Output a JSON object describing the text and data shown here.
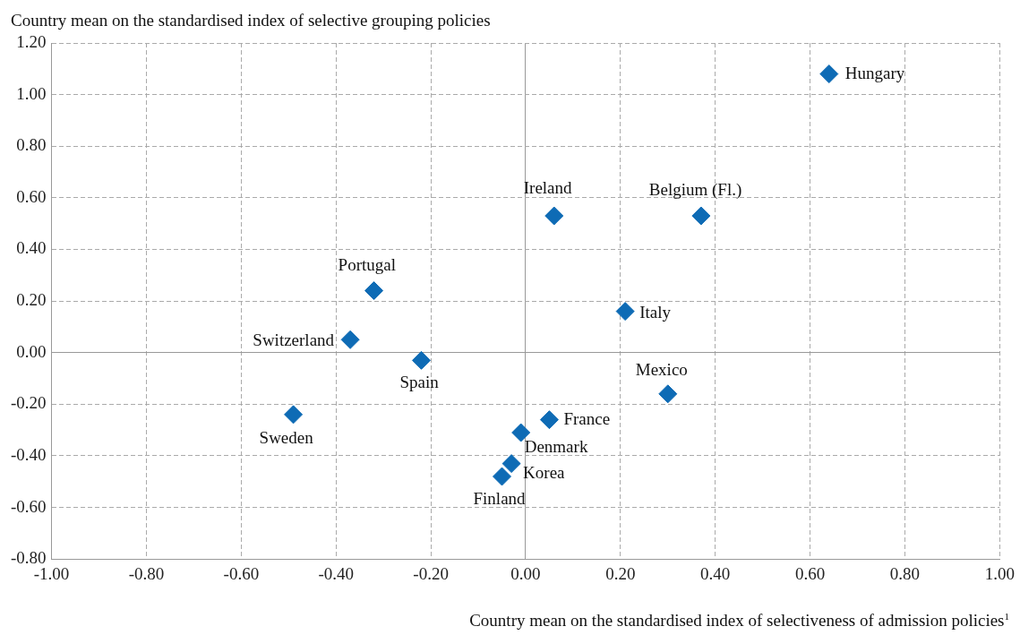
{
  "chart_data": {
    "type": "scatter",
    "xlabel": "Country mean on the standardised index of selectiveness of admission policies$^{1}$",
    "ylabel": "Country mean on the standardised index of selective grouping policies",
    "x": [
      0.64,
      0.37,
      0.06,
      -0.32,
      0.21,
      -0.37,
      -0.22,
      0.3,
      -0.49,
      0.05,
      -0.01,
      -0.03,
      -0.05
    ],
    "values": [
      1.08,
      0.53,
      0.53,
      0.24,
      0.16,
      0.05,
      -0.03,
      -0.16,
      -0.24,
      -0.26,
      -0.31,
      -0.43,
      -0.48
    ],
    "color": "#0e6bb5",
    "marker": "diamond",
    "xlim": [
      -1,
      1
    ],
    "xticks": [
      {
        "value": -1,
        "label": "-1.00"
      },
      {
        "value": -0.8,
        "label": "-0.80"
      },
      {
        "value": -0.6,
        "label": "-0.60"
      },
      {
        "value": -0.4,
        "label": "-0.40"
      },
      {
        "value": -0.2,
        "label": "-0.20"
      },
      {
        "value": 0,
        "label": "0.00"
      },
      {
        "value": 0.2,
        "label": "0.20"
      },
      {
        "value": 0.4,
        "label": "0.40"
      },
      {
        "value": 0.6,
        "label": "0.60"
      },
      {
        "value": 0.8,
        "label": "0.80"
      },
      {
        "value": 1,
        "label": "1.00"
      }
    ],
    "ylim": [
      -0.8,
      1.2
    ],
    "yticks": [
      {
        "value": -0.8,
        "label": "-0.80"
      },
      {
        "value": -0.6,
        "label": "-0.60"
      },
      {
        "value": -0.4,
        "label": "-0.40"
      },
      {
        "value": -0.2,
        "label": "-0.20"
      },
      {
        "value": 0,
        "label": "0.00"
      },
      {
        "value": 0.2,
        "label": "0.20"
      },
      {
        "value": 0.4,
        "label": "0.40"
      },
      {
        "value": 0.6,
        "label": "0.60"
      },
      {
        "value": 0.8,
        "label": "0.80"
      },
      {
        "value": 1,
        "label": "1.00"
      },
      {
        "value": 1.2,
        "label": "1.20"
      }
    ],
    "grid": true,
    "legend": false,
    "annotations": [
      {
        "text": "Hungary",
        "x": 0.64,
        "y": 1.08
      },
      {
        "text": "Belgium (Fl.)",
        "x": 0.37,
        "y": 0.53
      },
      {
        "text": "Ireland",
        "x": 0.06,
        "y": 0.53
      },
      {
        "text": "Portugal",
        "x": -0.32,
        "y": 0.24
      },
      {
        "text": "Italy",
        "x": 0.21,
        "y": 0.16
      },
      {
        "text": "Switzerland",
        "x": -0.37,
        "y": 0.05
      },
      {
        "text": "Spain",
        "x": -0.22,
        "y": -0.03
      },
      {
        "text": "Mexico",
        "x": 0.3,
        "y": -0.16
      },
      {
        "text": "Sweden",
        "x": -0.49,
        "y": -0.24
      },
      {
        "text": "France",
        "x": 0.05,
        "y": -0.26
      },
      {
        "text": "Denmark",
        "x": -0.01,
        "y": -0.31
      },
      {
        "text": "Korea",
        "x": -0.03,
        "y": -0.43
      },
      {
        "text": "Finland",
        "x": -0.05,
        "y": -0.48
      }
    ]
  }
}
